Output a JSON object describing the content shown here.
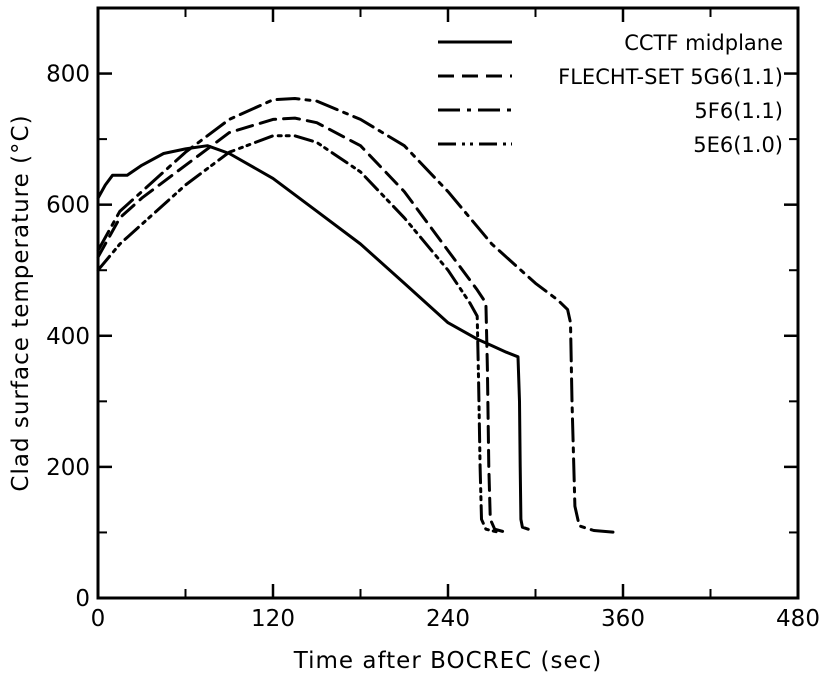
{
  "chart_data": {
    "type": "line",
    "xlabel": "Time after BOCREC (sec)",
    "ylabel": "Clad surface temperature (°C)",
    "xlim": [
      0,
      480
    ],
    "ylim": [
      0,
      900
    ],
    "xticks": [
      0,
      120,
      240,
      360,
      480
    ],
    "yticks": [
      0,
      200,
      400,
      600,
      800
    ],
    "grid": false,
    "legend_position": "top-right",
    "series": [
      {
        "name": "CCTF midplane",
        "style": "solid",
        "x": [
          0,
          5,
          10,
          15,
          20,
          30,
          45,
          60,
          75,
          90,
          120,
          150,
          180,
          210,
          240,
          260,
          270,
          280,
          288,
          289,
          289.5,
          290,
          291,
          295
        ],
        "y": [
          610,
          630,
          645,
          645,
          645,
          660,
          678,
          685,
          690,
          678,
          640,
          590,
          540,
          480,
          420,
          395,
          385,
          375,
          368,
          300,
          200,
          120,
          108,
          105
        ]
      },
      {
        "name": "FLECHT-SET 5G6(1.1)",
        "style": "dashed",
        "x": [
          0,
          15,
          30,
          60,
          90,
          120,
          135,
          150,
          180,
          210,
          240,
          260,
          266,
          267,
          268,
          269,
          272,
          280
        ],
        "y": [
          520,
          580,
          610,
          660,
          710,
          730,
          732,
          725,
          690,
          620,
          530,
          470,
          450,
          350,
          200,
          120,
          105,
          100
        ]
      },
      {
        "name": "5F6(1.1)",
        "style": "dash-dot",
        "x": [
          0,
          15,
          30,
          60,
          90,
          120,
          135,
          150,
          180,
          210,
          240,
          270,
          300,
          315,
          322,
          324,
          325,
          327,
          330,
          340,
          355
        ],
        "y": [
          530,
          590,
          620,
          680,
          730,
          760,
          762,
          758,
          730,
          690,
          620,
          540,
          480,
          455,
          440,
          420,
          300,
          140,
          110,
          103,
          100
        ]
      },
      {
        "name": "5E6(1.0)",
        "style": "dash-dot-dot",
        "x": [
          0,
          15,
          30,
          60,
          90,
          120,
          135,
          150,
          180,
          210,
          240,
          255,
          260,
          261,
          262,
          263,
          266,
          275
        ],
        "y": [
          500,
          540,
          570,
          630,
          680,
          705,
          705,
          695,
          650,
          580,
          500,
          450,
          430,
          330,
          200,
          120,
          105,
          100
        ]
      }
    ]
  }
}
